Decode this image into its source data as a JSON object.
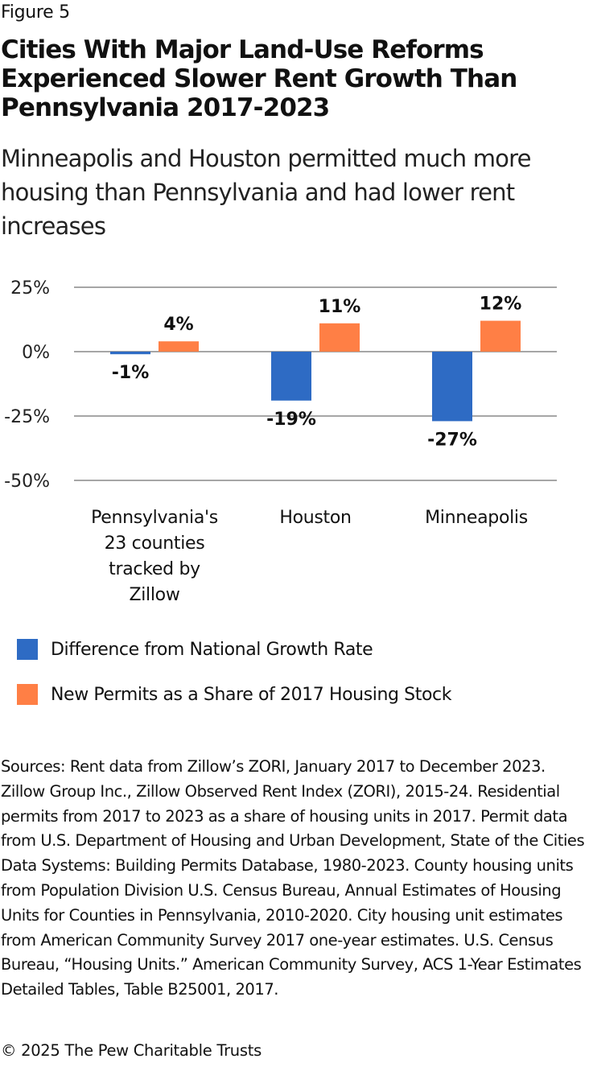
{
  "figure_label": "Figure 5",
  "title": "Cities With Major Land-Use Reforms Experienced Slower Rent Growth Than Pennsylvania 2017-2023",
  "subtitle": "Minneapolis and Houston permitted much more housing than Pennsylvania and had lower rent increases",
  "chart_data": {
    "type": "bar",
    "title": "Cities With Major Land-Use Reforms Experienced Slower Rent Growth Than Pennsylvania 2017-2023",
    "xlabel": "",
    "ylabel": "",
    "categories": [
      "Pennsylvania's 23 counties tracked by Zillow",
      "Houston",
      "Minneapolis"
    ],
    "category_lines": [
      [
        "Pennsylvania's",
        "23 counties",
        "tracked by",
        "Zillow"
      ],
      [
        "Houston"
      ],
      [
        "Minneapolis"
      ]
    ],
    "series": [
      {
        "name": "Difference from National Growth Rate",
        "color": "#2E6BC4",
        "values": [
          -1,
          -19,
          -27
        ],
        "labels": [
          "-1%",
          "-19%",
          "-27%"
        ]
      },
      {
        "name": "New Permits as a Share of 2017 Housing Stock",
        "color": "#FF7F45",
        "values": [
          4,
          11,
          12
        ],
        "labels": [
          "4%",
          "11%",
          "12%"
        ]
      }
    ],
    "ylim": [
      -50,
      25
    ],
    "yticks": [
      25,
      0,
      -25,
      -50
    ],
    "ytick_labels": [
      "25%",
      "0%",
      "-25%",
      "-50%"
    ],
    "grid": true,
    "legend_position": "bottom-left",
    "gridline_color": "#A6A6A6"
  },
  "sources": "Sources: Rent data from Zillow’s ZORI, January 2017 to December 2023. Zillow Group Inc., Zillow Observed Rent Index (ZORI), 2015-24. Residential permits from 2017 to 2023 as a share of housing units in 2017. Permit data from U.S. Department of Housing and Urban Development, State of the Cities Data Systems: Building Permits Database, 1980-2023. County housing units from Population Division U.S. Census Bureau, Annual Estimates of Housing Units for Counties in Pennsylvania, 2010-2020. City housing unit estimates from American Community Survey 2017 one-year estimates. U.S. Census Bureau, “Housing Units.” American Community Survey, ACS 1-Year Estimates Detailed Tables, Table B25001, 2017.",
  "copyright": "© 2025 The Pew Charitable Trusts"
}
